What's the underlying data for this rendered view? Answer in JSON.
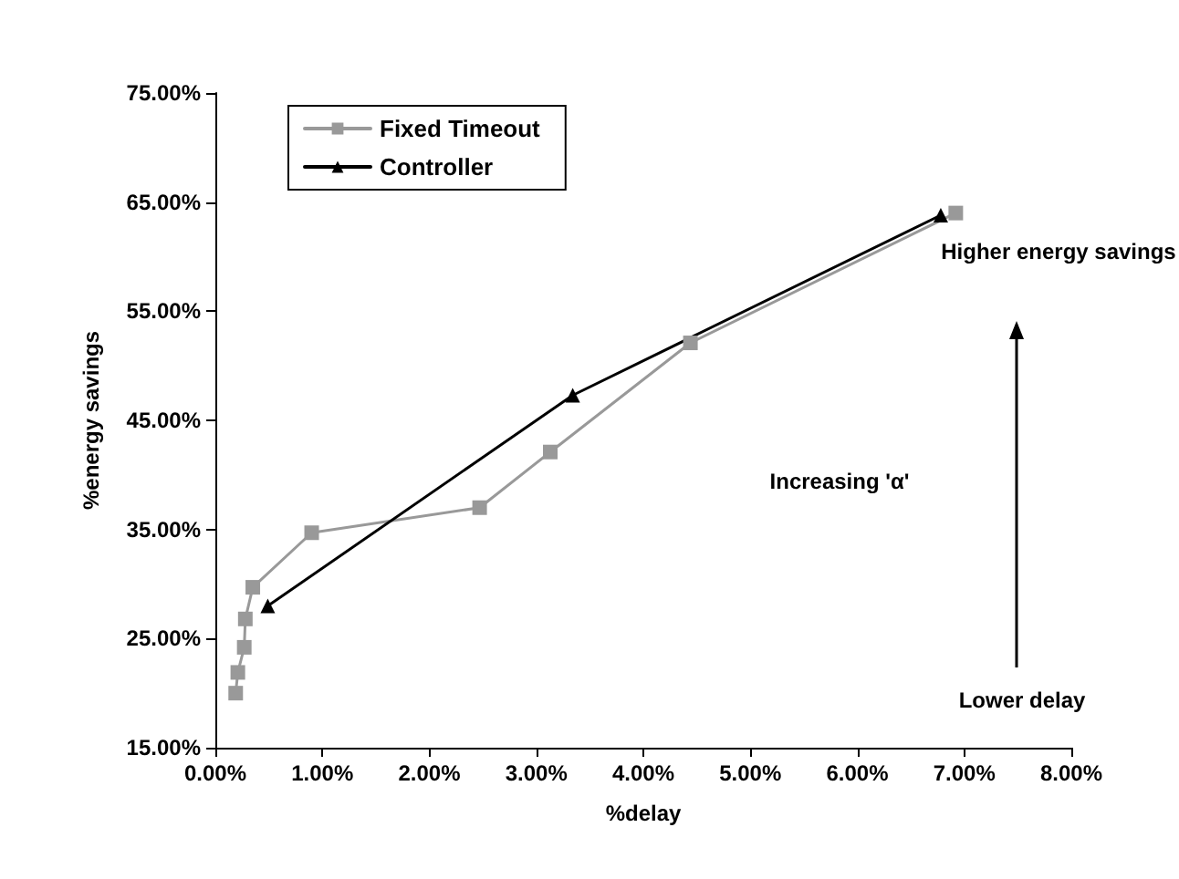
{
  "chart_data": {
    "type": "line",
    "xlabel": "%delay",
    "ylabel": "%energy savings",
    "series": [
      {
        "name": "Fixed Timeout",
        "color": "#999999",
        "marker": "square",
        "x": [
          0.19,
          0.21,
          0.27,
          0.28,
          0.35,
          0.9,
          2.47,
          3.13,
          4.44,
          6.92
        ],
        "values": [
          20.0,
          21.9,
          24.2,
          26.8,
          29.7,
          34.7,
          37.0,
          42.1,
          52.1,
          64.0
        ]
      },
      {
        "name": "Controller",
        "color": "#000000",
        "marker": "triangle",
        "x": [
          0.49,
          3.34,
          6.78
        ],
        "values": [
          28.0,
          47.3,
          63.8
        ]
      }
    ],
    "xlim": [
      0,
      8
    ],
    "xticks": [
      {
        "value": 0,
        "label": "0.00%"
      },
      {
        "value": 1,
        "label": "1.00%"
      },
      {
        "value": 2,
        "label": "2.00%"
      },
      {
        "value": 3,
        "label": "3.00%"
      },
      {
        "value": 4,
        "label": "4.00%"
      },
      {
        "value": 5,
        "label": "5.00%"
      },
      {
        "value": 6,
        "label": "6.00%"
      },
      {
        "value": 7,
        "label": "7.00%"
      },
      {
        "value": 8,
        "label": "8.00%"
      }
    ],
    "ylim": [
      15,
      75
    ],
    "yticks": [
      {
        "value": 15,
        "label": "15.00%"
      },
      {
        "value": 25,
        "label": "25.00%"
      },
      {
        "value": 35,
        "label": "35.00%"
      },
      {
        "value": 45,
        "label": "45.00%"
      },
      {
        "value": 55,
        "label": "55.00%"
      },
      {
        "value": 65,
        "label": "65.00%"
      },
      {
        "value": 75,
        "label": "75.00%"
      }
    ],
    "annotations": [
      "Higher energy savings",
      "Increasing 'α'",
      "Lower delay"
    ],
    "legend": "top left",
    "grid": false,
    "line_style": "solid"
  }
}
